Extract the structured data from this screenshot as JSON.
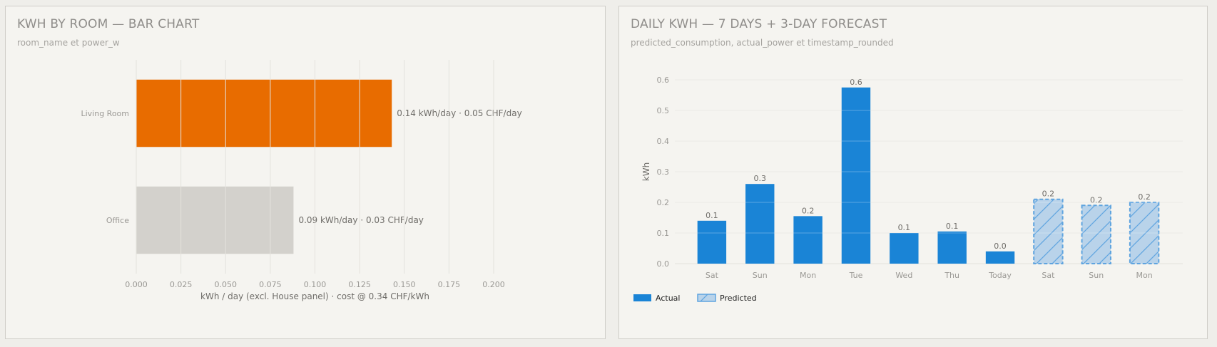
{
  "left_panel": {
    "title": "KWH BY ROOM — BAR CHART",
    "subtitle": "room_name et power_w"
  },
  "right_panel": {
    "title": "DAILY KWH — 7 DAYS + 3-DAY FORECAST",
    "subtitle": "predicted_consumption, actual_power et timestamp_rounded"
  },
  "chart_data": [
    {
      "type": "bar",
      "orientation": "horizontal",
      "categories": [
        "Living Room",
        "Office"
      ],
      "values": [
        0.143,
        0.088
      ],
      "bar_labels": [
        "0.14 kWh/day  ·  0.05 CHF/day",
        "0.09 kWh/day  ·  0.03 CHF/day"
      ],
      "colors": [
        "#e86c00",
        "#d3d1cc"
      ],
      "xlabel": "kWh / day  (excl. House panel)  ·  cost @ 0.34 CHF/kWh",
      "xlim": [
        0,
        0.2
      ],
      "xticks": [
        "0.000",
        "0.025",
        "0.050",
        "0.075",
        "0.100",
        "0.125",
        "0.150",
        "0.175",
        "0.200"
      ],
      "grid": true
    },
    {
      "type": "bar",
      "orientation": "vertical",
      "categories": [
        "Sat",
        "Sun",
        "Mon",
        "Tue",
        "Wed",
        "Thu",
        "Today",
        "Sat",
        "Sun",
        "Mon"
      ],
      "series": [
        {
          "name": "Actual",
          "color": "#1a84d6",
          "values": [
            0.14,
            0.26,
            0.155,
            0.575,
            0.1,
            0.105,
            0.04,
            null,
            null,
            null
          ],
          "labels": [
            "0.1",
            "0.3",
            "0.2",
            "0.6",
            "0.1",
            "0.1",
            "0.0",
            "",
            "",
            ""
          ]
        },
        {
          "name": "Predicted",
          "color": "#b9d3ea",
          "values": [
            null,
            null,
            null,
            null,
            null,
            null,
            null,
            0.21,
            0.19,
            0.2
          ],
          "labels": [
            "",
            "",
            "",
            "",
            "",
            "",
            "",
            "0.2",
            "0.2",
            "0.2"
          ]
        }
      ],
      "ylabel": "kWh",
      "ylim": [
        0,
        0.6
      ],
      "yticks": [
        "0.0",
        "0.1",
        "0.2",
        "0.3",
        "0.4",
        "0.5",
        "0.6"
      ],
      "legend": "bottom-left",
      "grid": true
    }
  ]
}
